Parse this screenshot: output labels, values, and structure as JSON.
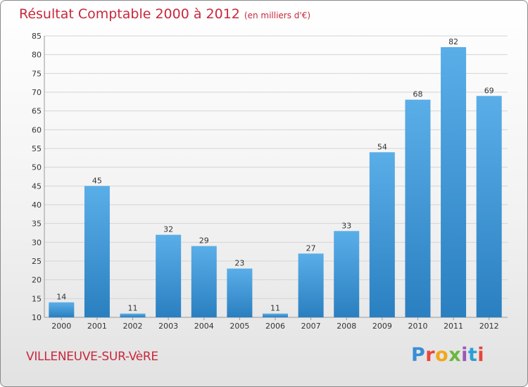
{
  "header": {
    "title": "Résultat Comptable 2000 à 2012",
    "unit": "(en milliers d'€)"
  },
  "footer": {
    "place": "VILLENEUVE-SUR-VèRE"
  },
  "logo": {
    "letters": [
      "P",
      "r",
      "o",
      "x",
      "i",
      "t",
      "i"
    ],
    "colors": [
      "#3a8dd6",
      "#e8453c",
      "#f2a71b",
      "#6ab73e",
      "#9b59b6",
      "#2a9fd6",
      "#e8453c"
    ]
  },
  "colors": {
    "title": "#c8283c",
    "bar_light": "#5aaee8",
    "bar_dark": "#2a7fc0"
  },
  "chart_data": {
    "type": "bar",
    "categories": [
      "2000",
      "2001",
      "2002",
      "2003",
      "2004",
      "2005",
      "2006",
      "2007",
      "2008",
      "2009",
      "2010",
      "2011",
      "2012"
    ],
    "values": [
      14,
      45,
      11,
      32,
      29,
      23,
      11,
      27,
      33,
      54,
      68,
      82,
      69
    ],
    "ylim": [
      10,
      85
    ],
    "yticks": [
      10,
      15,
      20,
      25,
      30,
      35,
      40,
      45,
      50,
      55,
      60,
      65,
      70,
      75,
      80,
      85
    ],
    "grid": true
  }
}
